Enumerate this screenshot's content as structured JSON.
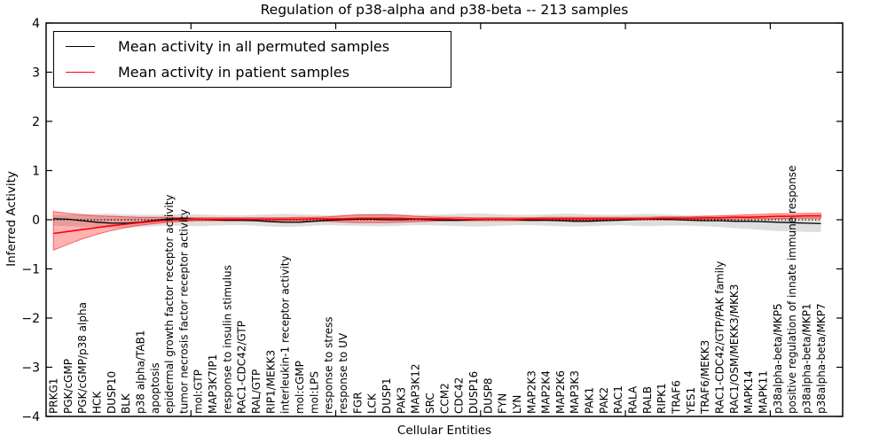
{
  "chart_data": {
    "type": "line",
    "title": "Regulation of p38-alpha and p38-beta -- 213 samples",
    "xlabel": "Cellular Entities",
    "ylabel": "Inferred Activity",
    "ylim": [
      -4,
      4
    ],
    "yticks": [
      -4,
      -3,
      -2,
      -1,
      0,
      1,
      2,
      3,
      4
    ],
    "xlim": [
      0,
      55
    ],
    "xticks": [
      10,
      20,
      30,
      40,
      50
    ],
    "grid": false,
    "legend_position": "upper left",
    "zero_line": {
      "style": "dotted",
      "color": "#000000",
      "y": 0
    },
    "categories": [
      "PRKG1",
      "PGK/cGMP",
      "PGK/cGMP/p38 alpha",
      "HCK",
      "DUSP10",
      "BLK",
      "p38 alpha/TAB1",
      "apoptosis",
      "epidermal growth factor receptor activity",
      "tumor necrosis factor receptor activity",
      "mol:GTP",
      "MAP3K7IP1",
      "response to insulin stimulus",
      "RAC1-CDC42/GTP",
      "RAL/GTP",
      "RIP1/MEKK3",
      "interleukin-1 receptor activity",
      "mol:cGMP",
      "mol:LPS",
      "response to stress",
      "response to UV",
      "FGR",
      "LCK",
      "DUSP1",
      "PAK3",
      "MAP3K12",
      "SRC",
      "CCM2",
      "CDC42",
      "DUSP16",
      "DUSP8",
      "FYN",
      "LYN",
      "MAP2K3",
      "MAP2K4",
      "MAP2K6",
      "MAP3K3",
      "PAK1",
      "PAK2",
      "RAC1",
      "RALA",
      "RALB",
      "RIPK1",
      "TRAF6",
      "YES1",
      "TRAF6/MEKK3",
      "RAC1-CDC42/GTP/PAK family",
      "RAC1/OSM/MEKK3/MKK3",
      "MAPK14",
      "MAPK11",
      "p38alpha-beta/MKP5",
      "positive regulation of innate immune response",
      "p38alpha-beta/MKP1",
      "p38alpha-beta/MKP7"
    ],
    "series": [
      {
        "name": "Mean activity in all permuted samples",
        "color": "#000000",
        "band_color": "rgba(0,0,0,0.13)",
        "band_stroke": "rgba(0,0,0,0.0)",
        "values": [
          0.02,
          0.01,
          -0.02,
          -0.05,
          -0.07,
          -0.07,
          -0.05,
          -0.01,
          0.02,
          0.02,
          0.01,
          0.0,
          -0.01,
          -0.01,
          -0.02,
          -0.04,
          -0.05,
          -0.05,
          -0.03,
          -0.01,
          0.0,
          0.01,
          0.01,
          0.0,
          0.0,
          0.01,
          0.0,
          -0.01,
          -0.01,
          0.0,
          0.01,
          0.01,
          0.0,
          -0.01,
          -0.01,
          -0.02,
          -0.03,
          -0.03,
          -0.02,
          -0.01,
          0.0,
          0.01,
          0.01,
          0.0,
          -0.01,
          -0.02,
          -0.02,
          -0.03,
          -0.03,
          -0.04,
          -0.05,
          -0.06,
          -0.07,
          -0.08
        ],
        "band_hi": [
          0.1,
          0.1,
          0.11,
          0.12,
          0.12,
          0.11,
          0.1,
          0.1,
          0.11,
          0.12,
          0.11,
          0.1,
          0.09,
          0.09,
          0.1,
          0.11,
          0.12,
          0.11,
          0.1,
          0.09,
          0.1,
          0.11,
          0.12,
          0.12,
          0.11,
          0.1,
          0.1,
          0.11,
          0.12,
          0.13,
          0.12,
          0.11,
          0.1,
          0.1,
          0.11,
          0.12,
          0.12,
          0.11,
          0.1,
          0.1,
          0.11,
          0.12,
          0.11,
          0.1,
          0.09,
          0.09,
          0.08,
          0.08,
          0.08,
          0.08,
          0.08,
          0.08,
          0.08,
          0.08
        ],
        "band_lo": [
          -0.12,
          -0.13,
          -0.14,
          -0.15,
          -0.16,
          -0.16,
          -0.15,
          -0.13,
          -0.12,
          -0.12,
          -0.13,
          -0.12,
          -0.11,
          -0.11,
          -0.12,
          -0.14,
          -0.15,
          -0.14,
          -0.12,
          -0.11,
          -0.12,
          -0.12,
          -0.13,
          -0.13,
          -0.12,
          -0.11,
          -0.11,
          -0.12,
          -0.13,
          -0.14,
          -0.13,
          -0.12,
          -0.11,
          -0.11,
          -0.12,
          -0.13,
          -0.14,
          -0.13,
          -0.12,
          -0.11,
          -0.12,
          -0.13,
          -0.12,
          -0.12,
          -0.12,
          -0.13,
          -0.15,
          -0.17,
          -0.19,
          -0.21,
          -0.23,
          -0.24,
          -0.25,
          -0.25
        ]
      },
      {
        "name": "Mean activity in patient samples",
        "color": "#ff0000",
        "band_color": "rgba(255,0,0,0.30)",
        "band_stroke": "rgba(255,0,0,0.55)",
        "values": [
          -0.28,
          -0.24,
          -0.2,
          -0.16,
          -0.12,
          -0.09,
          -0.06,
          -0.03,
          -0.01,
          0.0,
          0.01,
          0.01,
          0.01,
          0.01,
          0.01,
          0.01,
          0.01,
          0.01,
          0.02,
          0.02,
          0.02,
          0.03,
          0.03,
          0.03,
          0.03,
          0.02,
          0.02,
          0.02,
          0.01,
          0.01,
          0.01,
          0.01,
          0.01,
          0.02,
          0.02,
          0.02,
          0.02,
          0.02,
          0.02,
          0.02,
          0.02,
          0.02,
          0.03,
          0.03,
          0.03,
          0.04,
          0.04,
          0.05,
          0.05,
          0.06,
          0.07,
          0.07,
          0.08,
          0.08
        ],
        "band_hi": [
          0.17,
          0.13,
          0.1,
          0.08,
          0.07,
          0.06,
          0.05,
          0.05,
          0.05,
          0.04,
          0.04,
          0.04,
          0.04,
          0.04,
          0.04,
          0.04,
          0.04,
          0.05,
          0.05,
          0.06,
          0.08,
          0.1,
          0.1,
          0.1,
          0.09,
          0.07,
          0.06,
          0.05,
          0.05,
          0.04,
          0.04,
          0.04,
          0.04,
          0.04,
          0.05,
          0.05,
          0.05,
          0.05,
          0.05,
          0.05,
          0.05,
          0.05,
          0.06,
          0.06,
          0.06,
          0.07,
          0.08,
          0.09,
          0.1,
          0.11,
          0.12,
          0.12,
          0.13,
          0.13
        ],
        "band_lo": [
          -0.62,
          -0.5,
          -0.39,
          -0.3,
          -0.22,
          -0.16,
          -0.11,
          -0.08,
          -0.05,
          -0.03,
          -0.02,
          -0.02,
          -0.02,
          -0.02,
          -0.02,
          -0.02,
          -0.02,
          -0.02,
          -0.03,
          -0.03,
          -0.05,
          -0.06,
          -0.06,
          -0.06,
          -0.05,
          -0.04,
          -0.03,
          -0.02,
          -0.02,
          -0.02,
          -0.02,
          -0.02,
          -0.02,
          -0.02,
          -0.01,
          -0.01,
          -0.01,
          -0.01,
          -0.01,
          -0.01,
          0.0,
          0.0,
          0.0,
          0.0,
          0.0,
          0.01,
          0.01,
          0.01,
          0.02,
          0.02,
          0.02,
          0.03,
          0.03,
          0.03
        ]
      }
    ]
  },
  "legend": {
    "items": [
      {
        "label": "Mean activity in all permuted samples",
        "color": "#000000"
      },
      {
        "label": "Mean activity in patient samples",
        "color": "#ff0000"
      }
    ]
  }
}
